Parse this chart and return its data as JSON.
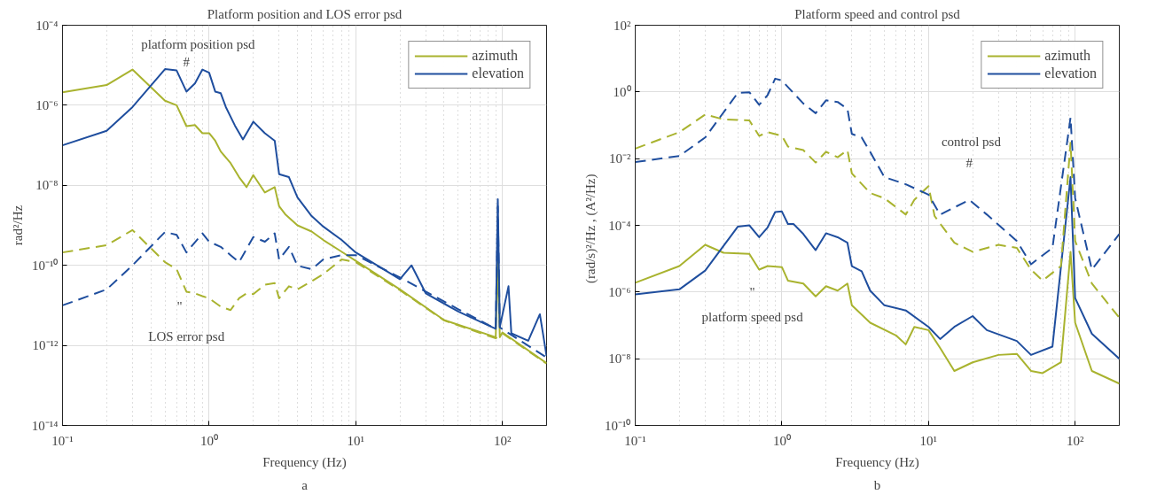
{
  "chart_data": [
    {
      "type": "line",
      "title": "Platform position and LOS error psd",
      "xlabel": "Frequency (Hz)",
      "ylabel": "rad²/Hz",
      "log": "xy",
      "xlim": [
        0.1,
        200
      ],
      "ylim": [
        1e-14,
        0.0001
      ],
      "xticks": [
        {
          "value": 0.1,
          "label": "10⁻¹"
        },
        {
          "value": 1,
          "label": "10⁰"
        },
        {
          "value": 10,
          "label": "10¹"
        },
        {
          "value": 100,
          "label": "10²"
        }
      ],
      "yticks": [
        {
          "value": 1e-14,
          "label": "10⁻¹⁴"
        },
        {
          "value": 1e-12,
          "label": "10⁻¹²"
        },
        {
          "value": 1e-10,
          "label": "10⁻¹⁰"
        },
        {
          "value": 1e-08,
          "label": "10⁻⁸"
        },
        {
          "value": 1e-06,
          "label": "10⁻⁶"
        },
        {
          "value": 0.0001,
          "label": "10⁻⁴"
        }
      ],
      "grid": true,
      "legend": "top right",
      "series": [
        {
          "name": "azimuth",
          "color": "#a9b32f",
          "line_style": "solid",
          "x": [
            0.1,
            0.2,
            0.3,
            0.5,
            0.6,
            0.7,
            0.8,
            0.9,
            1.0,
            1.1,
            1.2,
            1.4,
            1.6,
            1.8,
            2.0,
            2.4,
            2.8,
            3.0,
            3.3,
            4,
            5,
            6,
            8,
            10,
            20,
            40,
            90,
            93,
            96,
            100,
            200
          ],
          "values": [
            2.1e-06,
            3.2e-06,
            7.8e-06,
            1.3e-06,
            1e-06,
            3e-07,
            3.2e-07,
            2e-07,
            2e-07,
            1.3e-07,
            7e-08,
            3.6e-08,
            1.6e-08,
            9e-09,
            1.8e-08,
            6.6e-09,
            9e-09,
            3e-09,
            1.9e-09,
            1e-09,
            7e-10,
            4.3e-10,
            2.2e-10,
            1.3e-10,
            2.5e-11,
            4.3e-12,
            1.6e-12,
            1.3e-10,
            1.6e-12,
            2.1e-12,
            3.6e-13
          ]
        },
        {
          "name": "elevation",
          "color": "#1f4e9e",
          "line_style": "solid",
          "x": [
            0.1,
            0.2,
            0.3,
            0.5,
            0.6,
            0.7,
            0.8,
            0.9,
            1.0,
            1.1,
            1.2,
            1.3,
            1.5,
            1.7,
            2.0,
            2.4,
            2.8,
            3.0,
            3.5,
            4,
            5,
            6,
            8,
            10,
            20,
            24,
            30,
            50,
            90,
            93,
            96,
            110,
            115,
            150,
            180,
            200
          ],
          "values": [
            1e-07,
            2.3e-07,
            9e-07,
            8e-06,
            7.4e-06,
            2.2e-06,
            3.5e-06,
            7.8e-06,
            6.5e-06,
            2.2e-06,
            2e-06,
            9e-07,
            3.1e-07,
            1.4e-07,
            3.9e-07,
            2e-07,
            1.3e-07,
            1.9e-08,
            1.6e-08,
            5e-09,
            1.7e-09,
            9.3e-10,
            4.3e-10,
            2.1e-10,
            4.5e-11,
            1e-10,
            2e-11,
            7e-12,
            2.6e-12,
            4.5e-09,
            2.9e-12,
            3e-11,
            2e-12,
            1.3e-12,
            6e-12,
            5.4e-13
          ]
        },
        {
          "color": "#a9b32f",
          "line_style": "dashed",
          "x": [
            0.1,
            0.2,
            0.3,
            0.5,
            0.6,
            0.7,
            0.8,
            0.9,
            1.0,
            1.2,
            1.4,
            1.6,
            1.8,
            2.0,
            2.4,
            2.8,
            3,
            3.5,
            4,
            5,
            6,
            8,
            10,
            20,
            40,
            90,
            100,
            200
          ],
          "values": [
            2.1e-10,
            3.2e-10,
            7.6e-10,
            1.2e-10,
            8e-11,
            2.2e-11,
            2e-11,
            1.7e-11,
            1.5e-11,
            9.3e-12,
            7.6e-12,
            1.5e-11,
            2e-11,
            1.9e-11,
            3.3e-11,
            3.6e-11,
            1.5e-11,
            3e-11,
            2.5e-11,
            4e-11,
            6e-11,
            1.4e-10,
            1.2e-10,
            2.4e-11,
            4.2e-12,
            1.5e-12,
            2e-12,
            3.5e-13
          ]
        },
        {
          "color": "#1f4e9e",
          "line_style": "dashed",
          "x": [
            0.1,
            0.2,
            0.3,
            0.5,
            0.6,
            0.7,
            0.9,
            1.0,
            1.2,
            1.4,
            1.6,
            2.0,
            2.4,
            2.8,
            3.0,
            3.5,
            4,
            5,
            6,
            8,
            10,
            20,
            50,
            90,
            93,
            96,
            200
          ],
          "values": [
            1e-11,
            2.5e-11,
            1e-10,
            6.8e-10,
            5.8e-10,
            2.1e-10,
            6.3e-10,
            3.9e-10,
            2.9e-10,
            1.8e-10,
            1.2e-10,
            5.1e-10,
            3.9e-10,
            6.3e-10,
            1.4e-10,
            2.9e-10,
            9.8e-11,
            8e-11,
            1.4e-10,
            1.8e-10,
            1.8e-10,
            5e-11,
            8e-12,
            2.6e-12,
            3e-09,
            2.8e-12,
            5e-13
          ]
        }
      ],
      "annotations": [
        "platform position psd",
        "#",
        "\"",
        "LOS error psd",
        "a"
      ]
    },
    {
      "type": "line",
      "title": "Platform speed and control psd",
      "xlabel": "Frequency (Hz)",
      "ylabel": "(rad/s)²/Hz  ,  (A²/Hz)",
      "log": "xy",
      "xlim": [
        0.1,
        200
      ],
      "ylim": [
        1e-10,
        100
      ],
      "xticks": [
        {
          "value": 0.1,
          "label": "10⁻¹"
        },
        {
          "value": 1,
          "label": "10⁰"
        },
        {
          "value": 10,
          "label": "10¹"
        },
        {
          "value": 100,
          "label": "10²"
        }
      ],
      "yticks": [
        {
          "value": 1e-10,
          "label": "10⁻¹⁰"
        },
        {
          "value": 1e-08,
          "label": "10⁻⁸"
        },
        {
          "value": 1e-06,
          "label": "10⁻⁶"
        },
        {
          "value": 0.0001,
          "label": "10⁻⁴"
        },
        {
          "value": 0.01,
          "label": "10⁻²"
        },
        {
          "value": 1,
          "label": "10⁰"
        },
        {
          "value": 100,
          "label": "10²"
        }
      ],
      "grid": true,
      "legend": "top right",
      "series": [
        {
          "name": "azimuth",
          "color": "#a9b32f",
          "line_style": "solid",
          "x": [
            0.1,
            0.2,
            0.3,
            0.4,
            0.6,
            0.7,
            0.8,
            1.0,
            1.1,
            1.4,
            1.7,
            2,
            2.4,
            2.8,
            3.0,
            4,
            6,
            7,
            8,
            10,
            12,
            15,
            20,
            30,
            40,
            50,
            60,
            80,
            93,
            100,
            130,
            200
          ],
          "values": [
            1.9e-06,
            6e-06,
            2.6e-05,
            1.5e-05,
            1.4e-05,
            4.7e-06,
            6e-06,
            5.6e-06,
            2.2e-06,
            1.8e-06,
            7.4e-07,
            1.5e-06,
            1.1e-06,
            1.8e-06,
            4e-07,
            1.2e-07,
            5e-08,
            2.7e-08,
            9e-08,
            7.2e-08,
            2.1e-08,
            4.3e-09,
            7.8e-09,
            1.3e-08,
            1.4e-08,
            4.3e-09,
            3.7e-09,
            7.8e-09,
            1.6e-05,
            1.2e-07,
            4.3e-09,
            1.8e-09
          ]
        },
        {
          "name": "elevation",
          "color": "#1f4e9e",
          "line_style": "solid",
          "x": [
            0.1,
            0.2,
            0.3,
            0.5,
            0.6,
            0.7,
            0.8,
            0.9,
            1.0,
            1.1,
            1.2,
            1.4,
            1.7,
            2.0,
            2.4,
            2.8,
            3.0,
            3.5,
            4,
            5,
            7,
            10,
            12,
            15,
            20,
            25,
            40,
            50,
            70,
            93,
            100,
            130,
            200
          ],
          "values": [
            8.5e-07,
            1.2e-06,
            4.4e-06,
            9.1e-05,
            0.0001,
            4.4e-05,
            8.7e-05,
            0.00025,
            0.00026,
            0.00011,
            0.00011,
            5.5e-05,
            1.8e-05,
            5.8e-05,
            4.4e-05,
            3e-05,
            6e-06,
            4.2e-06,
            1.1e-06,
            4e-07,
            2.8e-07,
            9e-08,
            3.9e-08,
            9e-08,
            1.9e-07,
            7.2e-08,
            3.4e-08,
            1.3e-08,
            2.3e-08,
            0.0028,
            6.6e-07,
            5.6e-08,
            1e-08
          ]
        },
        {
          "color": "#a9b32f",
          "line_style": "dashed",
          "x": [
            0.1,
            0.2,
            0.3,
            0.4,
            0.6,
            0.7,
            0.8,
            1.0,
            1.1,
            1.4,
            1.7,
            2.0,
            2.4,
            2.8,
            3.0,
            4,
            5,
            7,
            8,
            10,
            11,
            15,
            20,
            30,
            40,
            50,
            60,
            80,
            93,
            100,
            130,
            200
          ],
          "values": [
            0.02,
            0.062,
            0.21,
            0.15,
            0.14,
            0.048,
            0.062,
            0.048,
            0.023,
            0.018,
            0.0076,
            0.016,
            0.011,
            0.018,
            0.0036,
            0.00093,
            0.00065,
            0.00021,
            0.00058,
            0.0015,
            0.00019,
            3e-05,
            1.6e-05,
            2.6e-05,
            2.1e-05,
            4.7e-06,
            2.2e-06,
            6e-06,
            0.03,
            3.4e-05,
            1.8e-06,
            1.7e-07
          ]
        },
        {
          "color": "#1f4e9e",
          "line_style": "dashed",
          "x": [
            0.1,
            0.2,
            0.3,
            0.5,
            0.6,
            0.7,
            0.8,
            0.9,
            1.0,
            1.2,
            1.4,
            1.7,
            2.0,
            2.4,
            2.8,
            3.0,
            3.5,
            4,
            5,
            7,
            10,
            12,
            19,
            25,
            40,
            50,
            70,
            93,
            100,
            130,
            200
          ],
          "values": [
            0.0079,
            0.012,
            0.043,
            0.93,
            0.98,
            0.41,
            0.81,
            2.5,
            2.2,
            0.93,
            0.45,
            0.23,
            0.56,
            0.5,
            0.31,
            0.055,
            0.043,
            0.016,
            0.0028,
            0.0017,
            0.00083,
            0.00021,
            0.00058,
            0.00021,
            3.4e-05,
            6.8e-06,
            2.1e-05,
            0.17,
            0.00065,
            4.7e-06,
            5.5e-05
          ]
        }
      ],
      "annotations": [
        "control psd",
        "#",
        "\"",
        "platform speed psd",
        "b"
      ]
    }
  ]
}
